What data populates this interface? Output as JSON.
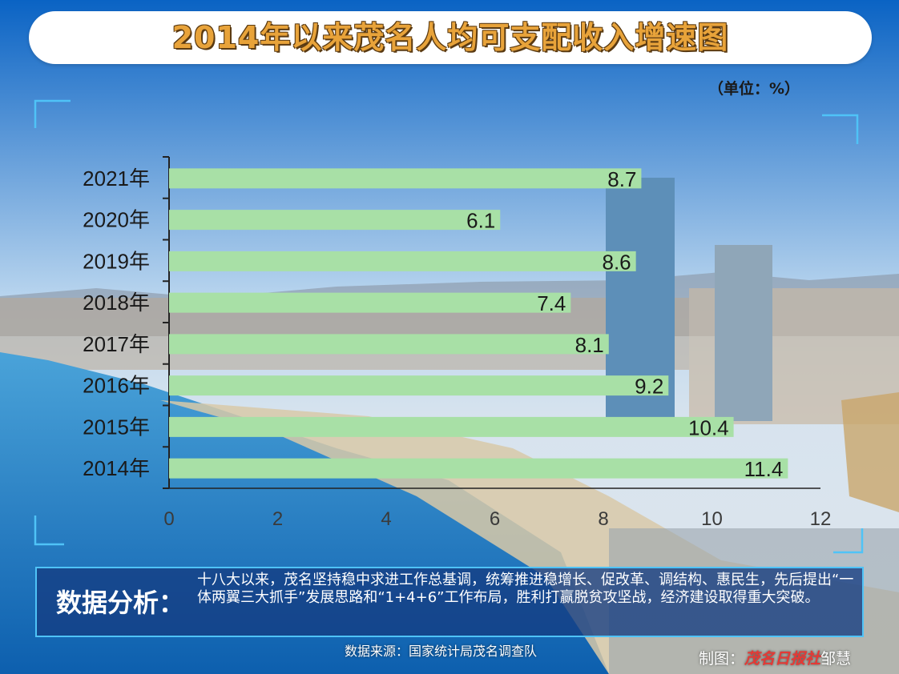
{
  "title": "2014年以来茂名人均可支配收入增速图",
  "unit_label": "（单位：%）",
  "analysis": {
    "heading": "数据分析：",
    "body": "十八大以来，茂名坚持稳中求进工作总基调，统筹推进稳增长、促改革、调结构、惠民生，先后提出“一体两翼三大抓手”发展思路和“1+4+6”工作布局，胜利打赢脱贫攻坚战，经济建设取得重大突破。"
  },
  "source": "数据来源：国家统计局茂名调查队",
  "credit": {
    "prefix": "制图：",
    "brand": "茂名日报社",
    "author": "邹慧"
  },
  "colors": {
    "bar": "#a8e0a6",
    "accent": "#e8a33a",
    "panel": "#1f4d99"
  },
  "chart_data": {
    "type": "bar",
    "orientation": "horizontal",
    "categories": [
      "2021年",
      "2020年",
      "2019年",
      "2018年",
      "2017年",
      "2016年",
      "2015年",
      "2014年"
    ],
    "values": [
      8.7,
      6.1,
      8.6,
      7.4,
      8.1,
      9.2,
      10.4,
      11.4
    ],
    "xlim": [
      0,
      12
    ],
    "xticks": [
      0,
      2,
      4,
      6,
      8,
      10,
      12
    ],
    "grid": false,
    "legend": "none"
  }
}
